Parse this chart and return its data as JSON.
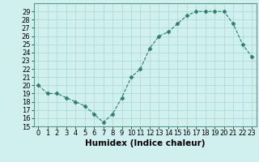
{
  "x": [
    0,
    1,
    2,
    3,
    4,
    5,
    6,
    7,
    8,
    9,
    10,
    11,
    12,
    13,
    14,
    15,
    16,
    17,
    18,
    19,
    20,
    21,
    22,
    23
  ],
  "y": [
    20,
    19,
    19,
    18.5,
    18,
    17.5,
    16.5,
    15.5,
    16.5,
    18.5,
    21,
    22,
    24.5,
    26,
    26.5,
    27.5,
    28.5,
    29,
    29,
    29,
    29,
    27.5,
    25,
    23.5
  ],
  "line_color": "#2d7d6e",
  "marker": "D",
  "marker_size": 2.5,
  "bg_color": "#d0efef",
  "grid_color": "#a8d8d8",
  "xlabel": "Humidex (Indice chaleur)",
  "ylim": [
    15,
    30
  ],
  "xlim": [
    -0.5,
    23.5
  ],
  "yticks": [
    15,
    16,
    17,
    18,
    19,
    20,
    21,
    22,
    23,
    24,
    25,
    26,
    27,
    28,
    29
  ],
  "xticks": [
    0,
    1,
    2,
    3,
    4,
    5,
    6,
    7,
    8,
    9,
    10,
    11,
    12,
    13,
    14,
    15,
    16,
    17,
    18,
    19,
    20,
    21,
    22,
    23
  ],
  "tick_fontsize": 6,
  "xlabel_fontsize": 7.5,
  "spine_color": "#5a9a8a"
}
